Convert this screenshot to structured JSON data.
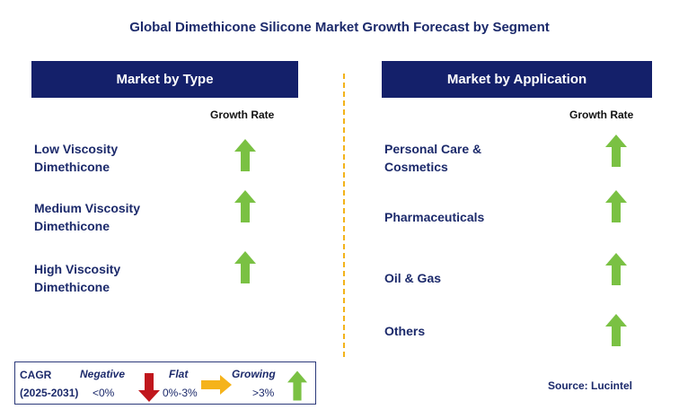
{
  "title": "Global Dimethicone Silicone Market Growth Forecast by Segment",
  "left_panel": {
    "header": "Market by Type",
    "column_label": "Growth Rate",
    "items": [
      {
        "line1": "Low Viscosity",
        "line2": "Dimethicone",
        "trend": "growing"
      },
      {
        "line1": "Medium Viscosity",
        "line2": "Dimethicone",
        "trend": "growing"
      },
      {
        "line1": "High Viscosity",
        "line2": "Dimethicone",
        "trend": "growing"
      }
    ]
  },
  "right_panel": {
    "header": "Market by Application",
    "column_label": "Growth Rate",
    "items": [
      {
        "line1": "Personal Care &",
        "line2": "Cosmetics",
        "trend": "growing"
      },
      {
        "line1": "Pharmaceuticals",
        "line2": "",
        "trend": "growing"
      },
      {
        "line1": "Oil & Gas",
        "line2": "",
        "trend": "growing"
      },
      {
        "line1": "Others",
        "line2": "",
        "trend": "growing"
      }
    ]
  },
  "legend": {
    "cagr_label": "CAGR",
    "period": "(2025-2031)",
    "negative_label": "Negative",
    "negative_range": "<0%",
    "flat_label": "Flat",
    "flat_range": "0%-3%",
    "growing_label": "Growing",
    "growing_range": ">3%"
  },
  "source": "Source: Lucintel",
  "colors": {
    "header_bg": "#14206a",
    "up_arrow": "#7ac143",
    "down_arrow": "#c0171d",
    "flat_arrow": "#f5b31b",
    "divider": "#f2b31b"
  }
}
